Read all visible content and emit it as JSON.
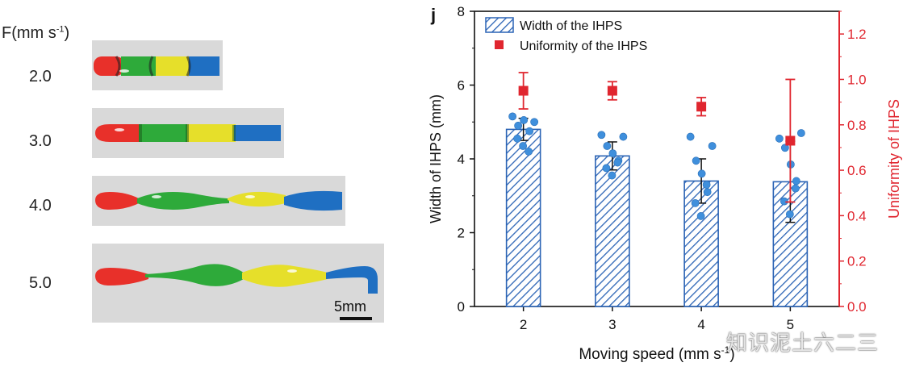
{
  "left_panel": {
    "header_prefix": "F(mm s",
    "header_sup": "-1",
    "header_suffix": ")",
    "speeds": [
      "2.0",
      "3.0",
      "4.0",
      "5.0"
    ],
    "scale_bar_label": "5mm",
    "colors": {
      "red": "#e8302a",
      "green": "#2eaa3a",
      "yellow": "#e6df2a",
      "blue": "#1f6fc2",
      "strip_bg": "#d9d9d9"
    }
  },
  "chart_data": {
    "type": "bar",
    "panel_label": "j",
    "categories": [
      "2",
      "3",
      "4",
      "5"
    ],
    "xlabel": "Moving speed (mm s",
    "xlabel_sup": "-1",
    "xlabel_end": ")",
    "ylabel": "Width of IHPS (mm)",
    "ylabel_right": "Uniformity of IHPS",
    "ylim": [
      0,
      8
    ],
    "ylim_right": [
      0.0,
      1.3
    ],
    "yticks": [
      "0",
      "2",
      "4",
      "6",
      "8"
    ],
    "yticks_right": [
      "0.0",
      "0.2",
      "0.4",
      "0.6",
      "0.8",
      "1.0",
      "1.2"
    ],
    "legend_position": "top-left",
    "series": [
      {
        "name": "Width of the IHPS",
        "kind": "bar",
        "color": "#2a63b5",
        "values": [
          4.8,
          4.08,
          3.4,
          3.38
        ],
        "error": [
          0.3,
          0.38,
          0.6,
          1.1
        ],
        "points": [
          [
            5.15,
            4.9,
            5.05,
            4.75,
            4.55,
            4.35,
            4.2,
            5.0
          ],
          [
            4.65,
            4.35,
            4.15,
            3.95,
            3.75,
            3.55,
            3.9,
            4.6
          ],
          [
            4.6,
            3.95,
            3.6,
            3.1,
            2.8,
            2.45,
            3.3,
            4.35
          ],
          [
            4.55,
            4.3,
            3.85,
            3.4,
            2.85,
            2.5,
            3.2,
            4.7
          ]
        ]
      },
      {
        "name": "Uniformity  of the IHPS",
        "kind": "scatter",
        "color": "#e0262f",
        "values": [
          0.95,
          0.95,
          0.88,
          0.73
        ],
        "error": [
          0.08,
          0.04,
          0.04,
          0.27
        ]
      }
    ]
  },
  "watermark": "知识泥土六二三"
}
